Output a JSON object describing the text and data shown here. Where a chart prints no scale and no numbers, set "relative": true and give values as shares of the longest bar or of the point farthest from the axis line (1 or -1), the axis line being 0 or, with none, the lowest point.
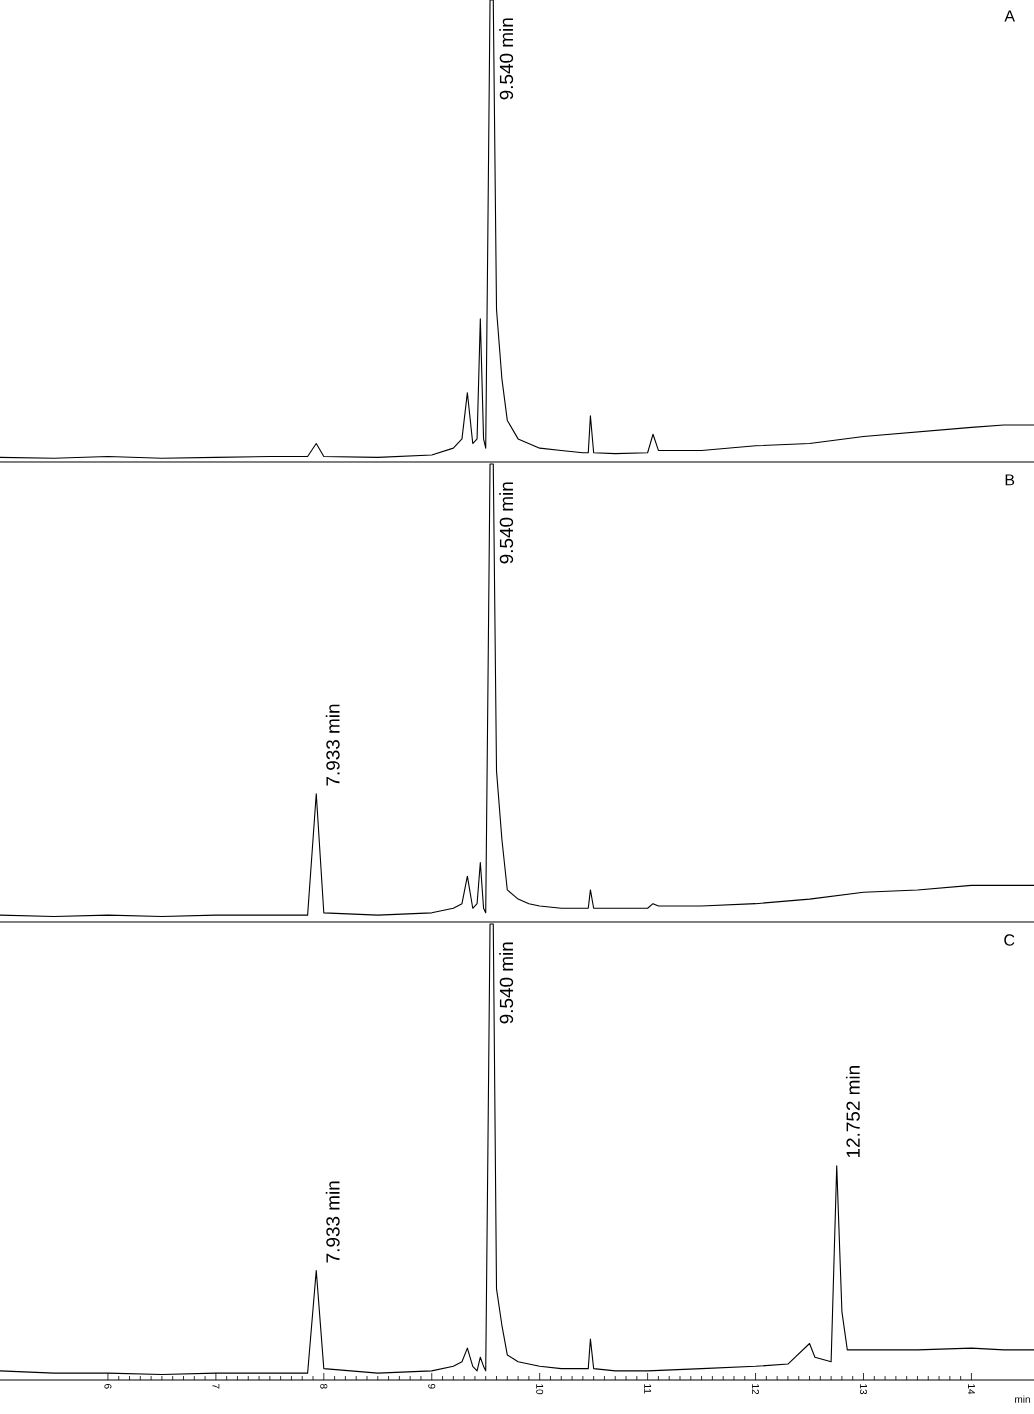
{
  "chart_data": [
    {
      "type": "line",
      "title": "A",
      "relative": true,
      "xlim": [
        5.0,
        14.58
      ],
      "xticks": [
        6,
        7,
        8,
        9,
        10,
        11,
        12,
        13,
        14
      ],
      "tick_labels": false,
      "x": [
        5.0,
        5.5,
        6.0,
        6.5,
        7.0,
        7.5,
        7.85,
        7.93,
        8.0,
        8.5,
        9.0,
        9.2,
        9.28,
        9.33,
        9.38,
        9.42,
        9.45,
        9.48,
        9.5,
        9.52,
        9.54,
        9.57,
        9.6,
        9.65,
        9.7,
        9.8,
        9.9,
        10.0,
        10.2,
        10.4,
        10.45,
        10.47,
        10.5,
        10.7,
        11.0,
        11.05,
        11.1,
        11.5,
        12.0,
        12.5,
        13.0,
        13.5,
        14.0,
        14.3,
        14.58
      ],
      "series": [
        {
          "color": "#000000",
          "values": [
            0.01,
            0.008,
            0.012,
            0.008,
            0.01,
            0.012,
            0.012,
            0.04,
            0.012,
            0.01,
            0.015,
            0.03,
            0.05,
            0.15,
            0.04,
            0.05,
            0.31,
            0.05,
            0.03,
            0.5,
            1,
            1,
            0.33,
            0.18,
            0.09,
            0.05,
            0.04,
            0.03,
            0.025,
            0.02,
            0.02,
            0.1,
            0.02,
            0.018,
            0.02,
            0.06,
            0.025,
            0.025,
            0.035,
            0.04,
            0.055,
            0.065,
            0.075,
            0.08,
            0.08
          ]
        }
      ],
      "annotations": [
        {
          "text": "9.540 min",
          "x": 9.54,
          "y": 1
        }
      ]
    },
    {
      "type": "line",
      "title": "B",
      "relative": true,
      "xlim": [
        5.0,
        14.58
      ],
      "xticks": [
        6,
        7,
        8,
        9,
        10,
        11,
        12,
        13,
        14
      ],
      "tick_labels": false,
      "x": [
        5.0,
        5.5,
        6.0,
        6.5,
        7.0,
        7.5,
        7.85,
        7.93,
        8.0,
        8.5,
        9.0,
        9.2,
        9.28,
        9.33,
        9.38,
        9.42,
        9.45,
        9.48,
        9.5,
        9.52,
        9.54,
        9.57,
        9.6,
        9.65,
        9.7,
        9.8,
        9.9,
        10.0,
        10.2,
        10.4,
        10.45,
        10.47,
        10.5,
        10.7,
        11.0,
        11.05,
        11.1,
        11.5,
        12.0,
        12.5,
        13.0,
        13.5,
        14.0,
        14.3,
        14.58
      ],
      "series": [
        {
          "color": "#000000",
          "values": [
            0.015,
            0.012,
            0.015,
            0.012,
            0.015,
            0.015,
            0.015,
            0.28,
            0.02,
            0.015,
            0.02,
            0.03,
            0.04,
            0.1,
            0.03,
            0.04,
            0.13,
            0.03,
            0.02,
            0.5,
            1,
            1,
            0.33,
            0.18,
            0.07,
            0.05,
            0.04,
            0.035,
            0.03,
            0.03,
            0.03,
            0.07,
            0.03,
            0.03,
            0.03,
            0.04,
            0.035,
            0.035,
            0.04,
            0.05,
            0.065,
            0.07,
            0.08,
            0.08,
            0.08
          ]
        }
      ],
      "annotations": [
        {
          "text": "9.540 min",
          "x": 9.54,
          "y": 1
        },
        {
          "text": "7.933 min",
          "x": 7.933,
          "y": 0.28
        }
      ]
    },
    {
      "type": "line",
      "title": "C",
      "xlabel": "min",
      "relative": true,
      "xlim": [
        5.0,
        14.58
      ],
      "xticks": [
        6,
        7,
        8,
        9,
        10,
        11,
        12,
        13,
        14
      ],
      "tick_labels": "x",
      "x": [
        5.0,
        5.5,
        6.0,
        6.5,
        7.0,
        7.5,
        7.85,
        7.93,
        8.0,
        8.5,
        9.0,
        9.2,
        9.28,
        9.33,
        9.38,
        9.42,
        9.45,
        9.48,
        9.5,
        9.52,
        9.54,
        9.57,
        9.6,
        9.65,
        9.7,
        9.8,
        9.9,
        10.0,
        10.2,
        10.4,
        10.45,
        10.47,
        10.5,
        10.7,
        11.0,
        11.5,
        12.0,
        12.3,
        12.5,
        12.55,
        12.7,
        12.752,
        12.8,
        12.85,
        13.0,
        13.5,
        14.0,
        14.3,
        14.58
      ],
      "series": [
        {
          "color": "#000000",
          "values": [
            0.02,
            0.015,
            0.015,
            0.012,
            0.015,
            0.015,
            0.015,
            0.24,
            0.025,
            0.015,
            0.02,
            0.03,
            0.04,
            0.07,
            0.03,
            0.02,
            0.05,
            0.03,
            0.02,
            0.5,
            1,
            1,
            0.2,
            0.12,
            0.055,
            0.04,
            0.035,
            0.03,
            0.025,
            0.025,
            0.025,
            0.09,
            0.025,
            0.02,
            0.02,
            0.025,
            0.03,
            0.035,
            0.08,
            0.05,
            0.04,
            0.47,
            0.15,
            0.066,
            0.066,
            0.066,
            0.07,
            0.066,
            0.066
          ]
        }
      ],
      "annotations": [
        {
          "text": "9.540 min",
          "x": 9.54,
          "y": 1
        },
        {
          "text": "7.933 min",
          "x": 7.933,
          "y": 0.24
        },
        {
          "text": "12.752 min",
          "x": 12.752,
          "y": 0.47
        }
      ]
    }
  ]
}
